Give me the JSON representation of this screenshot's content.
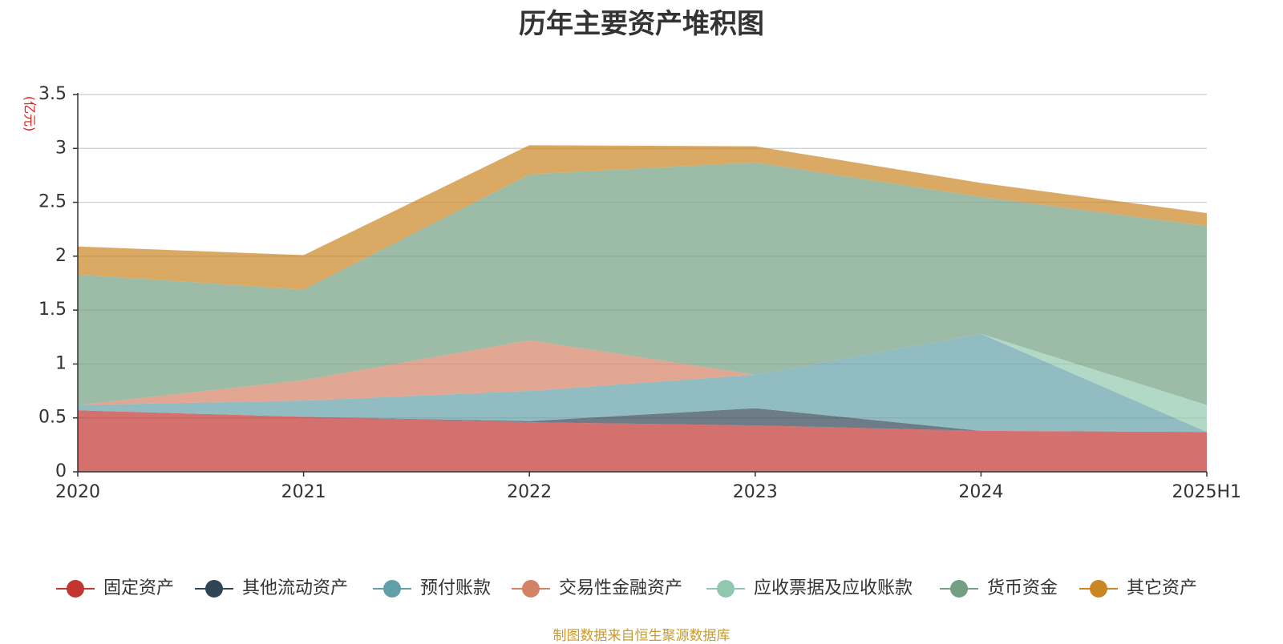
{
  "chart_data": {
    "type": "area",
    "stacked": true,
    "title": "历年主要资产堆积图",
    "ylabel": "(亿元)",
    "xlabel": "",
    "categories": [
      "2020",
      "2021",
      "2022",
      "2023",
      "2024",
      "2025H1"
    ],
    "ylim": [
      0,
      3.5
    ],
    "yticks": [
      0,
      0.5,
      1,
      1.5,
      2,
      2.5,
      3,
      3.5
    ],
    "ytick_labels": [
      "0",
      "0.5",
      "1",
      "1.5",
      "2",
      "2.5",
      "3",
      "3.5"
    ],
    "grid": true,
    "legend_position": "bottom",
    "series": [
      {
        "name": "固定资产",
        "color": "#c23531",
        "values": [
          0.57,
          0.51,
          0.46,
          0.43,
          0.38,
          0.37
        ]
      },
      {
        "name": "其他流动资产",
        "color": "#2f4554",
        "values": [
          0,
          0,
          0.01,
          0.16,
          0,
          0
        ]
      },
      {
        "name": "预付账款",
        "color": "#61a0a8",
        "values": [
          0.05,
          0.15,
          0.28,
          0.31,
          0.9,
          0
        ]
      },
      {
        "name": "交易性金融资产",
        "color": "#d48265",
        "values": [
          0,
          0.19,
          0.47,
          0,
          0,
          0
        ]
      },
      {
        "name": "应收票据及应收账款",
        "color": "#91c7ae",
        "values": [
          0,
          0,
          0,
          0,
          0,
          0.25
        ]
      },
      {
        "name": "货币资金",
        "color": "#749f83",
        "values": [
          1.21,
          0.84,
          1.54,
          1.97,
          1.27,
          1.66
        ]
      },
      {
        "name": "其它资产",
        "color": "#ca8622",
        "values": [
          0.26,
          0.32,
          0.27,
          0.15,
          0.13,
          0.12
        ]
      }
    ]
  },
  "footer": {
    "source": "制图数据来自恒生聚源数据库"
  }
}
